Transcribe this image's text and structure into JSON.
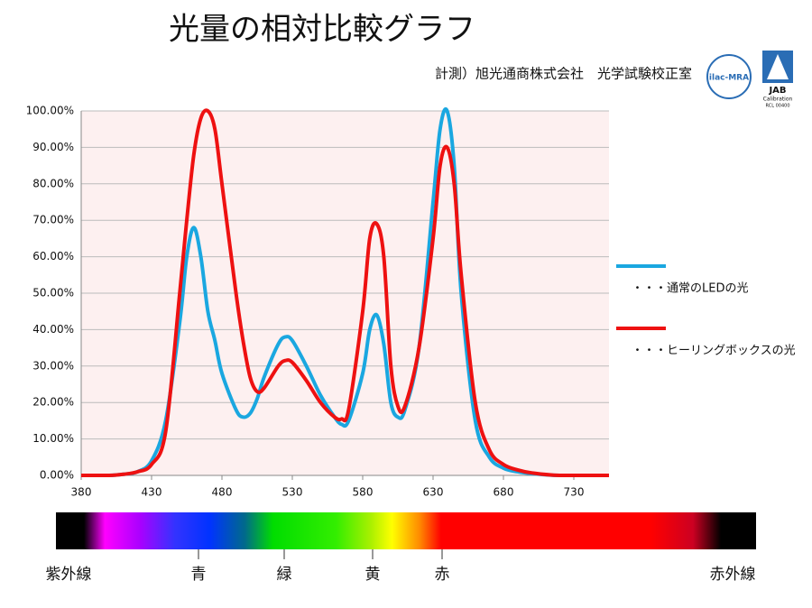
{
  "chart_data": {
    "type": "line",
    "title": "光量の相対比較グラフ",
    "subtitle": "計測）旭光通商株式会社　光学試験校正室",
    "x": [
      380,
      390,
      400,
      410,
      420,
      430,
      440,
      450,
      455,
      460,
      465,
      470,
      475,
      480,
      490,
      495,
      500,
      505,
      510,
      520,
      525,
      530,
      540,
      550,
      560,
      565,
      570,
      580,
      585,
      590,
      595,
      600,
      605,
      610,
      620,
      630,
      635,
      640,
      645,
      650,
      660,
      670,
      680,
      690,
      700,
      720,
      755
    ],
    "series": [
      {
        "name": "・・・通常のLEDの光",
        "color": "#1aa7e0",
        "values": [
          0,
          0,
          0,
          0.3,
          1,
          4,
          15,
          42,
          60,
          68,
          60,
          45,
          37,
          28,
          18,
          16,
          17,
          21,
          27,
          36,
          38,
          37,
          30,
          22,
          16,
          14,
          15,
          28,
          40,
          44,
          36,
          20,
          16,
          18,
          35,
          75,
          95,
          100,
          85,
          50,
          15,
          5,
          2,
          1,
          0.5,
          0,
          0
        ]
      },
      {
        "name": "・・・ヒーリングボックスの光",
        "color": "#ee1111",
        "values": [
          0,
          0,
          0,
          0.3,
          1,
          3,
          12,
          50,
          70,
          88,
          98,
          100,
          95,
          80,
          50,
          37,
          27,
          23,
          24,
          30,
          31.5,
          31,
          26,
          20,
          16,
          15.5,
          18,
          45,
          65,
          69,
          60,
          30,
          19,
          19,
          35,
          65,
          85,
          90,
          80,
          55,
          20,
          7,
          3,
          1.5,
          0.7,
          0,
          0
        ]
      }
    ],
    "xlim": [
      380,
      755
    ],
    "xticks": [
      380,
      430,
      480,
      530,
      580,
      630,
      680,
      730
    ],
    "ylim": [
      0,
      100
    ],
    "yticks": [
      {
        "value": 0,
        "label": "0.00%"
      },
      {
        "value": 10,
        "label": "10.00%"
      },
      {
        "value": 20,
        "label": "20.00%"
      },
      {
        "value": 30,
        "label": "30.00%"
      },
      {
        "value": 40,
        "label": "40.00%"
      },
      {
        "value": 50,
        "label": "50.00%"
      },
      {
        "value": 60,
        "label": "60.00%"
      },
      {
        "value": 70,
        "label": "70.00%"
      },
      {
        "value": 80,
        "label": "80.00%"
      },
      {
        "value": 90,
        "label": "90.00%"
      },
      {
        "value": 100,
        "label": "100.00%"
      }
    ],
    "grid": true
  },
  "spectrum": {
    "labels": [
      "紫外線",
      "青",
      "緑",
      "黄",
      "赤",
      "赤外線"
    ]
  },
  "logos": {
    "ilac": "ilac-MRA",
    "jab": "JAB",
    "jab_sub": "Calibration",
    "jab_code": "RCL 00400"
  }
}
